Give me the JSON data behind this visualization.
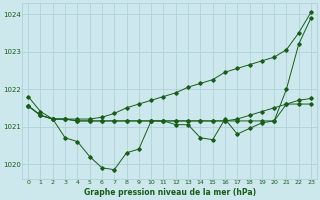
{
  "xlabel": "Graphe pression niveau de la mer (hPa)",
  "ylim": [
    1019.6,
    1024.3
  ],
  "xlim": [
    -0.5,
    23.5
  ],
  "xticks": [
    0,
    1,
    2,
    3,
    4,
    5,
    6,
    7,
    8,
    9,
    10,
    11,
    12,
    13,
    14,
    15,
    16,
    17,
    18,
    19,
    20,
    21,
    22,
    23
  ],
  "yticks": [
    1020,
    1021,
    1022,
    1023,
    1024
  ],
  "bg_color": "#cce8ec",
  "grid_color": "#aacdd4",
  "line_color": "#1a5c1a",
  "series1": [
    1021.8,
    1021.4,
    1021.2,
    1020.7,
    1020.6,
    1020.2,
    1019.9,
    1019.85,
    1020.3,
    1020.4,
    1021.15,
    1021.15,
    1021.05,
    1021.05,
    1020.7,
    1020.65,
    1021.2,
    1020.8,
    1020.95,
    1021.1,
    1021.15,
    1022.0,
    1023.2,
    1023.9
  ],
  "series2": [
    1021.55,
    1021.3,
    1021.2,
    1021.2,
    1021.15,
    1021.15,
    1021.15,
    1021.15,
    1021.15,
    1021.15,
    1021.15,
    1021.15,
    1021.15,
    1021.15,
    1021.15,
    1021.15,
    1021.15,
    1021.15,
    1021.15,
    1021.15,
    1021.15,
    1021.6,
    1021.6,
    1021.6
  ],
  "series3": [
    1021.55,
    1021.3,
    1021.2,
    1021.2,
    1021.2,
    1021.2,
    1021.25,
    1021.35,
    1021.5,
    1021.6,
    1021.7,
    1021.8,
    1021.9,
    1022.05,
    1022.15,
    1022.25,
    1022.45,
    1022.55,
    1022.65,
    1022.75,
    1022.85,
    1023.05,
    1023.5,
    1024.05
  ],
  "series4": [
    1021.55,
    1021.3,
    1021.2,
    1021.2,
    1021.15,
    1021.15,
    1021.15,
    1021.15,
    1021.15,
    1021.15,
    1021.15,
    1021.15,
    1021.15,
    1021.15,
    1021.15,
    1021.15,
    1021.15,
    1021.2,
    1021.3,
    1021.4,
    1021.5,
    1021.6,
    1021.7,
    1021.75
  ]
}
